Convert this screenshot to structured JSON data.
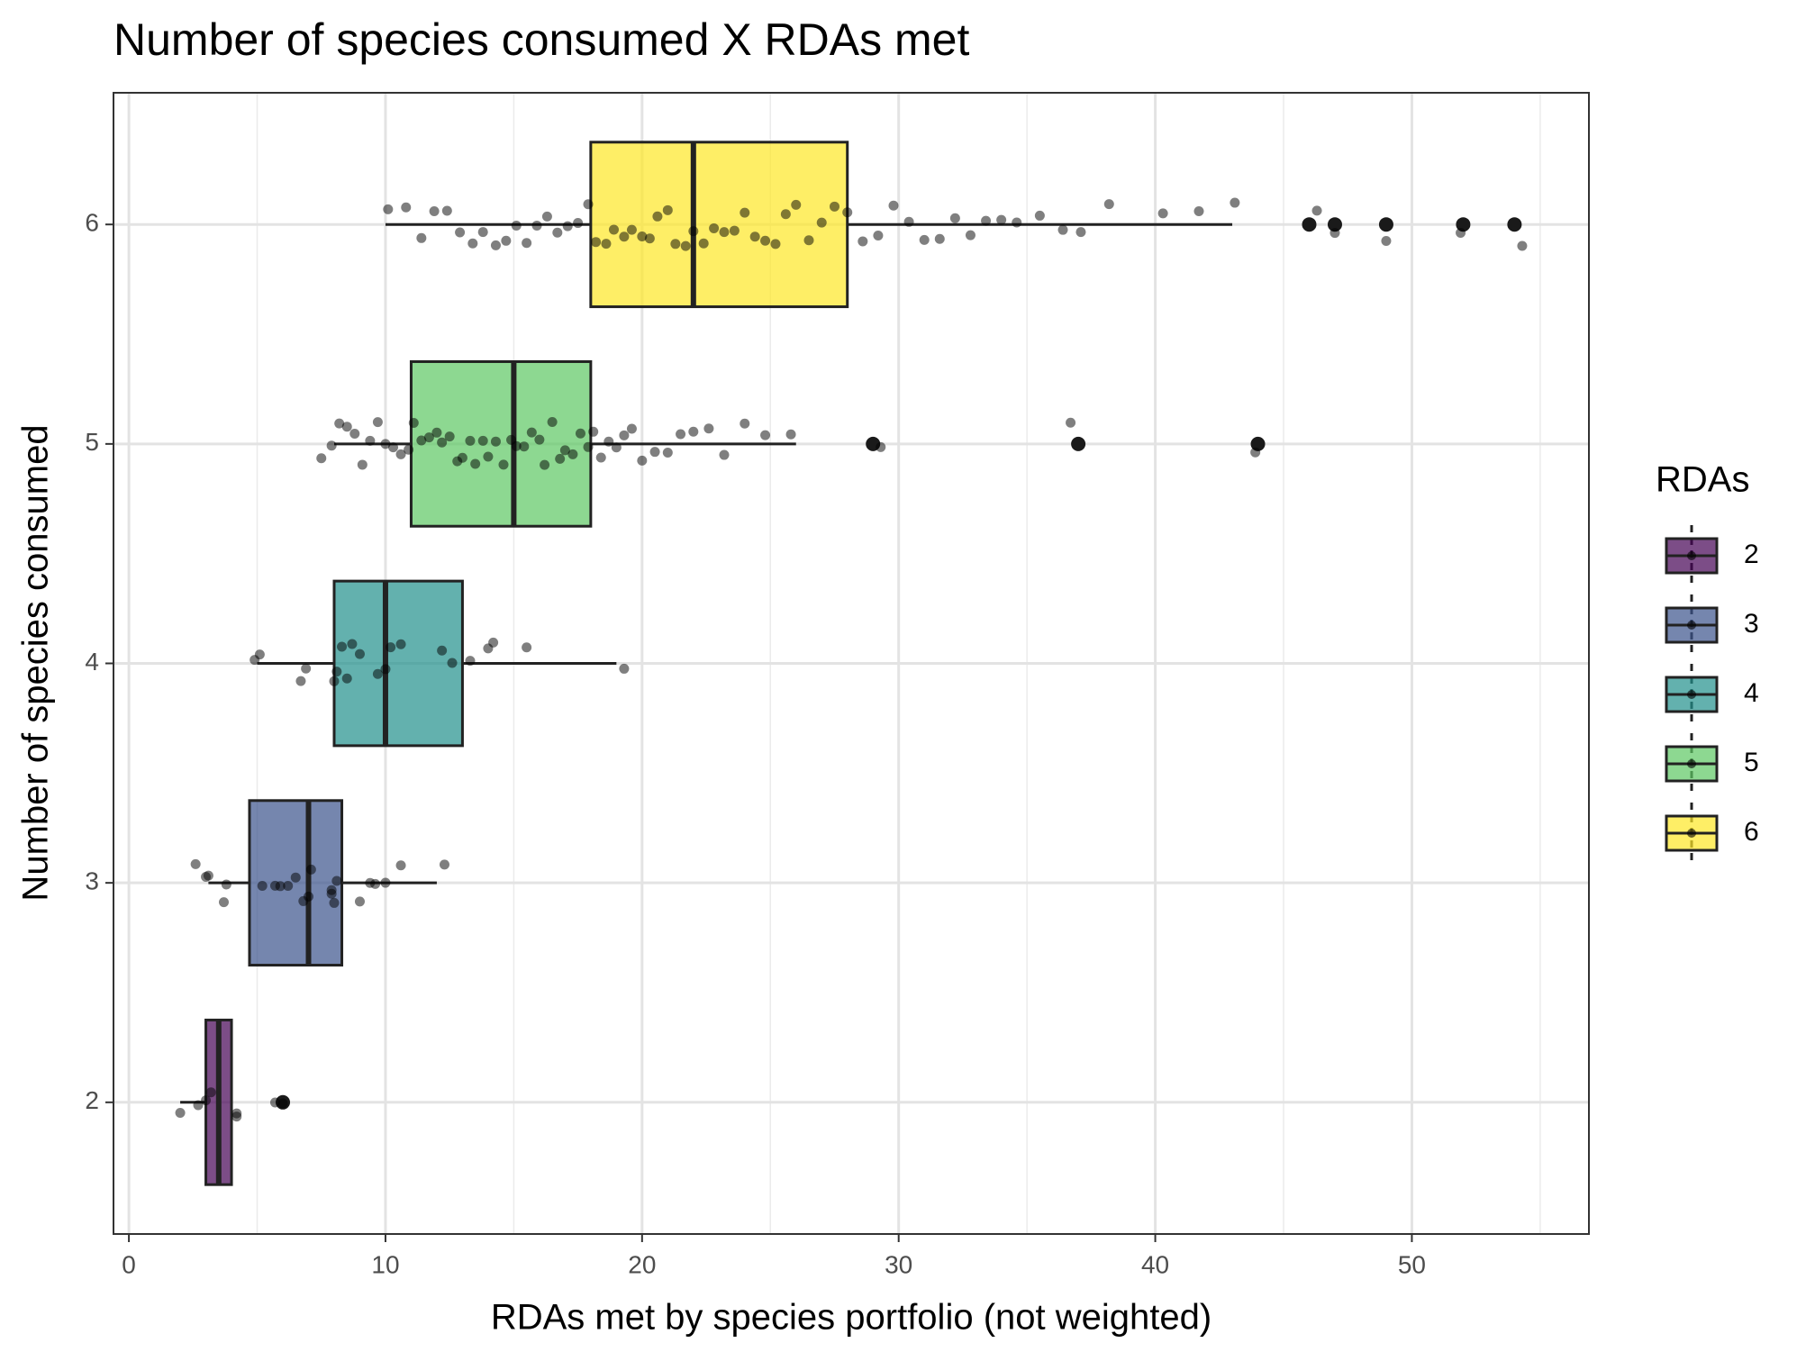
{
  "chart_data": {
    "type": "boxplot",
    "title": "Number of species consumed X RDAs met",
    "x_label": "RDAs met by species portfolio (not weighted)",
    "y_label": "Number of species consumed",
    "legend_title": "RDAs",
    "legend_position": "right",
    "grid": true,
    "xlim": [
      -0.6,
      56.9
    ],
    "xticks": [
      0,
      10,
      20,
      30,
      40,
      50
    ],
    "x_minor_grid": [
      5,
      15,
      25,
      35,
      45,
      55
    ],
    "ylim": [
      1.4,
      6.6
    ],
    "yticks": [
      2,
      3,
      4,
      5,
      6
    ],
    "series": [
      {
        "name": "2",
        "y": 2,
        "color": "#440154",
        "min": 2,
        "q1": 3,
        "median": 3.5,
        "q3": 4,
        "max": 4,
        "outliers": [
          6
        ],
        "points": [
          2,
          2.7,
          3,
          3.2,
          4.2,
          4.2,
          5.7,
          6
        ]
      },
      {
        "name": "3",
        "y": 3,
        "color": "#3B528B",
        "min": 3.1,
        "q1": 4.7,
        "median": 7,
        "q3": 8.3,
        "max": 12,
        "outliers": [],
        "points": [
          2.6,
          3,
          3.1,
          3.7,
          3.8,
          5.2,
          5.7,
          5.9,
          6.2,
          6.5,
          6.8,
          7,
          7.1,
          7.9,
          7.9,
          8,
          8.1,
          9,
          9.4,
          9.6,
          10,
          10.6,
          12.3
        ]
      },
      {
        "name": "4",
        "y": 4,
        "color": "#21908C",
        "min": 5,
        "q1": 8,
        "median": 10,
        "q3": 13,
        "max": 19,
        "outliers": [],
        "points": [
          4.9,
          5.1,
          6.7,
          6.9,
          8,
          8.1,
          8.3,
          8.5,
          8.7,
          9,
          9.7,
          10,
          10.2,
          10.6,
          12.2,
          12.6,
          13.3,
          14,
          14.2,
          15.5,
          19.3
        ]
      },
      {
        "name": "5",
        "y": 5,
        "color": "#5DC863",
        "min": 8,
        "q1": 11,
        "median": 15,
        "q3": 18,
        "max": 26,
        "outliers": [
          29,
          37,
          44
        ],
        "points": [
          7.5,
          7.9,
          8.2,
          8.5,
          8.8,
          9.1,
          9.4,
          9.7,
          10,
          10.3,
          10.6,
          10.9,
          11.1,
          11.4,
          11.7,
          12,
          12.2,
          12.5,
          12.8,
          13,
          13.3,
          13.5,
          13.8,
          14,
          14.3,
          14.6,
          14.9,
          15.1,
          15.4,
          15.7,
          16,
          16.2,
          16.5,
          16.8,
          17,
          17.3,
          17.6,
          17.9,
          18.1,
          18.4,
          18.7,
          19,
          19.3,
          19.6,
          20,
          20.5,
          21,
          21.5,
          22,
          22.6,
          23.2,
          24,
          24.8,
          25.8,
          29.3,
          36.7,
          43.9
        ]
      },
      {
        "name": "6",
        "y": 6,
        "color": "#FDE725",
        "min": 10,
        "q1": 18,
        "median": 22,
        "q3": 28,
        "max": 43,
        "outliers": [
          46,
          47,
          49,
          52,
          54
        ],
        "points": [
          10.1,
          10.8,
          11.4,
          11.9,
          12.4,
          12.9,
          13.4,
          13.8,
          14.3,
          14.7,
          15.1,
          15.5,
          15.9,
          16.3,
          16.7,
          17.1,
          17.5,
          17.9,
          18.2,
          18.6,
          18.9,
          19.3,
          19.6,
          20,
          20.3,
          20.6,
          21,
          21.3,
          21.7,
          22,
          22.4,
          22.8,
          23.2,
          23.6,
          24,
          24.4,
          24.8,
          25.2,
          25.6,
          26,
          26.5,
          27,
          27.5,
          28,
          28.6,
          29.2,
          29.8,
          30.4,
          31,
          31.6,
          32.2,
          32.8,
          33.4,
          34,
          34.6,
          35.5,
          36.4,
          37.1,
          38.2,
          40.3,
          41.7,
          43.1,
          46.3,
          47,
          49,
          51.9,
          54.3
        ]
      }
    ]
  }
}
